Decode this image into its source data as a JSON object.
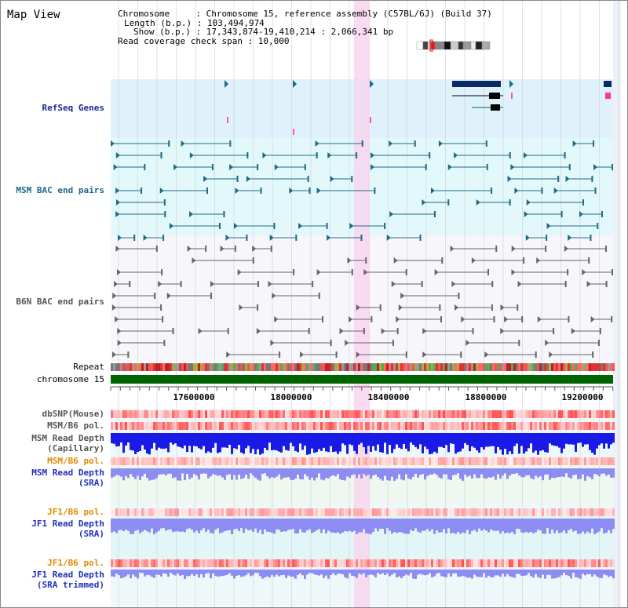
{
  "title": "Map View",
  "header": {
    "line1": "Chromosome     : Chromosome 15, reference assembly (C57BL/6J) (Build 37)",
    "line2": "Length (b.p.) : 103,494,974",
    "line3": "Show (b.p.) : 17,343,874-19,410,214 : 2,066,341 bp",
    "line4": "Read coverage check span : 10,000"
  },
  "tracks": {
    "refseq": "RefSeq Genes",
    "msm_bac": "MSM BAC end pairs",
    "b6n_bac": "B6N BAC end pairs",
    "repeat": "Repeat",
    "chromosome": "chromosome 15",
    "dbsnp": "dbSNP(Mouse)",
    "msm_b6_pol": "MSM/B6 pol.",
    "msm_depth_cap_1": "MSM Read Depth",
    "msm_depth_cap_2": "(Capillary)",
    "msm_b6_pol2": "MSM/B6 pol.",
    "msm_depth_sra_1": "MSM Read Depth",
    "msm_depth_sra_2": "(SRA)",
    "jf1_b6_pol": "JF1/B6 pol.",
    "jf1_depth_sra_1": "JF1 Read Depth",
    "jf1_depth_sra_2": "(SRA)",
    "jf1_b6_pol2": "JF1/B6 pol.",
    "jf1_depth_trim_1": "JF1 Read Depth",
    "jf1_depth_trim_2": "(SRA trimmed)"
  },
  "axis": {
    "ticks": [
      "17600000",
      "18000000",
      "18400000",
      "18800000",
      "19200000"
    ]
  },
  "colors": {
    "refseq_bg": "#dff1fb",
    "msm_bg": "#e3f8fa",
    "highlight": "#f8d6ef",
    "chromosome": "#006400",
    "gene": "#0a2a66",
    "msm_feature": "#1e6a86",
    "b6n_feature": "#666666",
    "depth_blue": "#1a1ae6",
    "depth_light": "#8c8cf2"
  }
}
